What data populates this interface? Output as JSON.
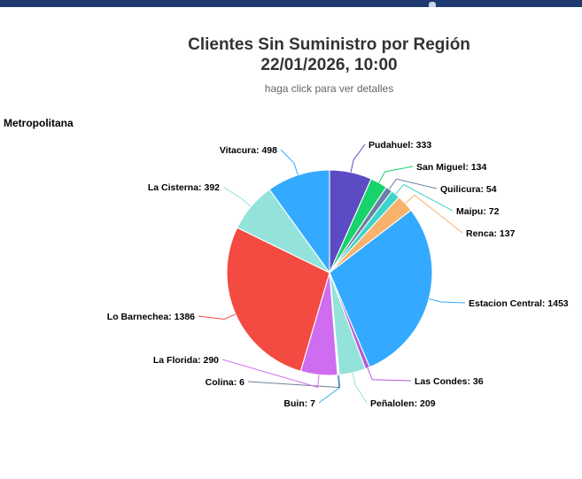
{
  "chart_data": {
    "type": "pie",
    "title": "Clientes Sin Suministro por Región",
    "subtitle_date": "22/01/2026, 10:00",
    "subtitle_hint": "haga click para ver detalles",
    "region": "Metropolitana",
    "slices": [
      {
        "name": "Pudahuel",
        "value": 333,
        "label": "Pudahuel: 333",
        "color": "#5b4bc4"
      },
      {
        "name": "San Miguel",
        "value": 134,
        "label": "San Miguel: 134",
        "color": "#17d36c"
      },
      {
        "name": "Quilicura",
        "value": 54,
        "label": "Quilicura: 54",
        "color": "#6b7fa8"
      },
      {
        "name": "Maipu",
        "value": 72,
        "label": "Maipu: 72",
        "color": "#3ed3c9"
      },
      {
        "name": "Renca",
        "value": 137,
        "label": "Renca: 137",
        "color": "#f7b26b"
      },
      {
        "name": "Estacion Central",
        "value": 1453,
        "label": "Estacion Central: 1453",
        "color": "#33aaff"
      },
      {
        "name": "Las Condes",
        "value": 36,
        "label": "Las Condes: 36",
        "color": "#b05bd9"
      },
      {
        "name": "Peñalolen",
        "value": 209,
        "label": "Peñalolen: 209",
        "color": "#94e3da"
      },
      {
        "name": "Buin",
        "value": 7,
        "label": "Buin: 7",
        "color": "#3ea8e0"
      },
      {
        "name": "Colina",
        "value": 6,
        "label": "Colina: 6",
        "color": "#6f7d9c"
      },
      {
        "name": "La Florida",
        "value": 290,
        "label": "La Florida: 290",
        "color": "#d06cf0"
      },
      {
        "name": "Lo Barnechea",
        "value": 1386,
        "label": "Lo Barnechea: 1386",
        "color": "#f34a42"
      },
      {
        "name": "La Cisterna",
        "value": 392,
        "label": "La Cisterna: 392",
        "color": "#94e3da"
      },
      {
        "name": "Vitacura",
        "value": 498,
        "label": "Vitacura: 498",
        "color": "#33aaff"
      }
    ]
  }
}
